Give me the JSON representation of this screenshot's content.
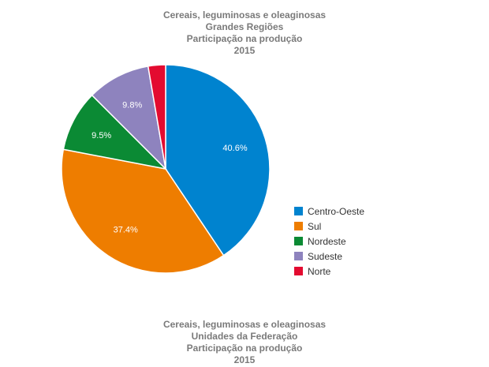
{
  "top_title": {
    "line1": "Cereais, leguminosas e oleaginosas",
    "line2": "Grandes Regiões",
    "line3": "Participação na produção",
    "line4": "2015"
  },
  "bottom_title": {
    "line1": "Cereais, leguminosas e oleaginosas",
    "line2": "Unidades da Federação",
    "line3": "Participação na produção",
    "line4": "2015"
  },
  "chart_data": {
    "type": "pie",
    "unit": "%",
    "legend_position": "right",
    "slices": [
      {
        "name": "Centro-Oeste",
        "value": 40.6,
        "label": "40.6%",
        "color": "#0083cf"
      },
      {
        "name": "Sul",
        "value": 37.4,
        "label": "37.4%",
        "color": "#ee7d00"
      },
      {
        "name": "Nordeste",
        "value": 9.5,
        "label": "9.5%",
        "color": "#0b8a34"
      },
      {
        "name": "Sudeste",
        "value": 9.8,
        "label": "9.8%",
        "color": "#8e83be"
      },
      {
        "name": "Norte",
        "value": 2.7,
        "label": "",
        "color": "#e30b30"
      }
    ]
  }
}
